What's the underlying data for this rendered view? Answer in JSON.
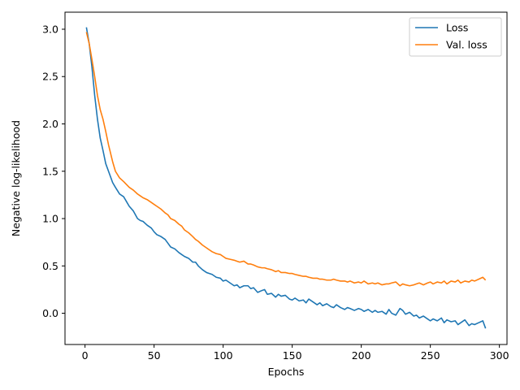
{
  "chart_data": {
    "type": "line",
    "title": "",
    "xlabel": "Epochs",
    "ylabel": "Negative log-likelihood",
    "xlim": [
      -14.5,
      305.5
    ],
    "ylim": [
      -0.33,
      3.18
    ],
    "xticks": [
      0,
      50,
      100,
      150,
      200,
      250,
      300
    ],
    "xtick_labels": [
      "0",
      "50",
      "100",
      "150",
      "200",
      "250",
      "300"
    ],
    "yticks": [
      0.0,
      0.5,
      1.0,
      1.5,
      2.0,
      2.5,
      3.0
    ],
    "ytick_labels": [
      "0.0",
      "0.5",
      "1.0",
      "1.5",
      "2.0",
      "2.5",
      "3.0"
    ],
    "grid": false,
    "legend_position": "top-right",
    "series": [
      {
        "name": "Loss",
        "color": "#1f77b4",
        "x": [
          1,
          3,
          5,
          7,
          9,
          11,
          13,
          15,
          17,
          20,
          22,
          25,
          28,
          30,
          32,
          35,
          38,
          40,
          42,
          45,
          48,
          50,
          52,
          55,
          58,
          60,
          62,
          65,
          68,
          70,
          72,
          75,
          78,
          80,
          82,
          85,
          88,
          90,
          92,
          95,
          98,
          100,
          102,
          105,
          108,
          110,
          112,
          115,
          118,
          120,
          122,
          125,
          128,
          130,
          132,
          135,
          138,
          140,
          142,
          145,
          148,
          150,
          152,
          155,
          158,
          160,
          162,
          165,
          168,
          170,
          172,
          175,
          178,
          180,
          182,
          185,
          188,
          190,
          192,
          195,
          198,
          200,
          202,
          205,
          208,
          210,
          212,
          215,
          218,
          220,
          222,
          225,
          228,
          230,
          232,
          235,
          238,
          240,
          242,
          245,
          248,
          250,
          252,
          255,
          258,
          260,
          262,
          265,
          268,
          270,
          272,
          275,
          278,
          280,
          282,
          285,
          288,
          290
        ],
        "y": [
          3.02,
          2.85,
          2.6,
          2.3,
          2.05,
          1.85,
          1.72,
          1.58,
          1.5,
          1.38,
          1.33,
          1.26,
          1.23,
          1.18,
          1.13,
          1.08,
          1.0,
          0.98,
          0.97,
          0.93,
          0.9,
          0.86,
          0.83,
          0.81,
          0.78,
          0.74,
          0.7,
          0.68,
          0.64,
          0.62,
          0.6,
          0.58,
          0.54,
          0.54,
          0.5,
          0.46,
          0.43,
          0.42,
          0.41,
          0.38,
          0.37,
          0.34,
          0.35,
          0.32,
          0.29,
          0.3,
          0.27,
          0.29,
          0.29,
          0.26,
          0.27,
          0.22,
          0.24,
          0.25,
          0.2,
          0.21,
          0.17,
          0.2,
          0.18,
          0.19,
          0.15,
          0.14,
          0.16,
          0.13,
          0.14,
          0.11,
          0.15,
          0.12,
          0.09,
          0.11,
          0.08,
          0.1,
          0.07,
          0.06,
          0.09,
          0.06,
          0.04,
          0.06,
          0.05,
          0.03,
          0.05,
          0.04,
          0.02,
          0.04,
          0.01,
          0.03,
          0.01,
          0.02,
          -0.01,
          0.04,
          0.0,
          -0.02,
          0.05,
          0.03,
          -0.01,
          0.01,
          -0.03,
          -0.02,
          -0.05,
          -0.03,
          -0.06,
          -0.08,
          -0.06,
          -0.08,
          -0.05,
          -0.1,
          -0.07,
          -0.09,
          -0.08,
          -0.12,
          -0.1,
          -0.07,
          -0.13,
          -0.11,
          -0.12,
          -0.1,
          -0.08,
          -0.16
        ]
      },
      {
        "name": "Val. loss",
        "color": "#ff7f0e",
        "x": [
          1,
          3,
          5,
          7,
          9,
          11,
          13,
          15,
          17,
          20,
          22,
          25,
          28,
          30,
          32,
          35,
          38,
          40,
          42,
          45,
          48,
          50,
          52,
          55,
          58,
          60,
          62,
          65,
          68,
          70,
          72,
          75,
          78,
          80,
          82,
          85,
          88,
          90,
          92,
          95,
          98,
          100,
          102,
          105,
          108,
          110,
          112,
          115,
          118,
          120,
          122,
          125,
          128,
          130,
          132,
          135,
          138,
          140,
          142,
          145,
          148,
          150,
          152,
          155,
          158,
          160,
          162,
          165,
          168,
          170,
          172,
          175,
          178,
          180,
          182,
          185,
          188,
          190,
          192,
          195,
          198,
          200,
          202,
          205,
          208,
          210,
          212,
          215,
          218,
          220,
          222,
          225,
          228,
          230,
          232,
          235,
          238,
          240,
          242,
          245,
          248,
          250,
          252,
          255,
          258,
          260,
          262,
          265,
          268,
          270,
          272,
          275,
          278,
          280,
          282,
          285,
          288,
          290
        ],
        "y": [
          2.97,
          2.85,
          2.68,
          2.5,
          2.3,
          2.15,
          2.05,
          1.92,
          1.78,
          1.6,
          1.5,
          1.43,
          1.39,
          1.36,
          1.33,
          1.3,
          1.26,
          1.24,
          1.22,
          1.2,
          1.17,
          1.15,
          1.13,
          1.1,
          1.06,
          1.04,
          1.0,
          0.98,
          0.94,
          0.92,
          0.88,
          0.85,
          0.81,
          0.78,
          0.76,
          0.72,
          0.69,
          0.67,
          0.65,
          0.63,
          0.62,
          0.6,
          0.58,
          0.57,
          0.56,
          0.55,
          0.54,
          0.55,
          0.52,
          0.52,
          0.51,
          0.49,
          0.48,
          0.48,
          0.47,
          0.46,
          0.44,
          0.45,
          0.43,
          0.43,
          0.42,
          0.42,
          0.41,
          0.4,
          0.39,
          0.39,
          0.38,
          0.37,
          0.37,
          0.36,
          0.36,
          0.35,
          0.35,
          0.36,
          0.35,
          0.34,
          0.34,
          0.33,
          0.34,
          0.32,
          0.33,
          0.32,
          0.34,
          0.31,
          0.32,
          0.31,
          0.32,
          0.3,
          0.31,
          0.31,
          0.32,
          0.33,
          0.29,
          0.31,
          0.3,
          0.29,
          0.3,
          0.31,
          0.32,
          0.3,
          0.32,
          0.33,
          0.31,
          0.33,
          0.32,
          0.34,
          0.31,
          0.34,
          0.33,
          0.35,
          0.32,
          0.34,
          0.33,
          0.35,
          0.34,
          0.36,
          0.38,
          0.35
        ]
      }
    ]
  }
}
